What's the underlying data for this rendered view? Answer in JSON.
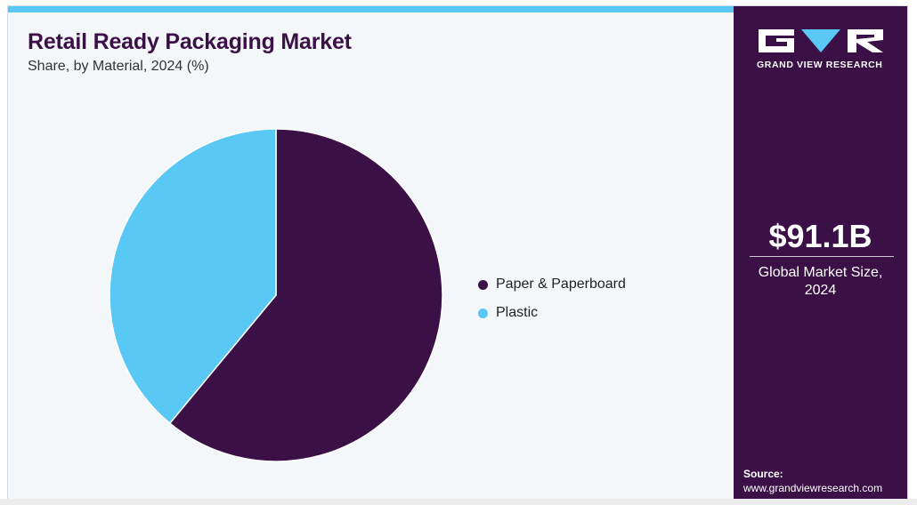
{
  "colors": {
    "primary": "#3a1046",
    "secondary": "#5ac8f5",
    "background": "#f3f7fa"
  },
  "chart_data": {
    "type": "pie",
    "title": "Retail Ready Packaging Market",
    "subtitle": "Share, by Material, 2024 (%)",
    "legend_position": "right",
    "slices": [
      {
        "name": "Paper & Paperboard",
        "value": 61,
        "color": "#3a1046"
      },
      {
        "name": "Plastic",
        "value": 39,
        "color": "#5ac8f5"
      }
    ]
  },
  "sidebar": {
    "logo_icon": "gvr-logo-icon",
    "logo_text": "GRAND VIEW RESEARCH",
    "market_size": "$91.1B",
    "market_size_label_line1": "Global Market Size,",
    "market_size_label_line2": "2024",
    "source_label": "Source:",
    "source_url": "www.grandviewresearch.com"
  }
}
